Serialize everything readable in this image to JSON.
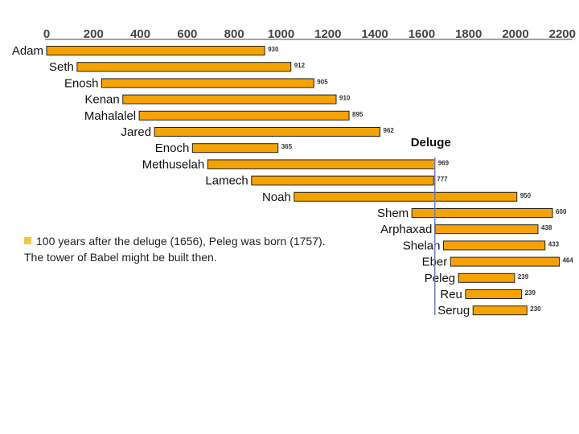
{
  "chart_data": {
    "type": "bar",
    "orientation": "horizontal",
    "subtype": "floating-timeline",
    "x_ticks": [
      "0",
      "200",
      "400",
      "600",
      "800",
      "1000",
      "1200",
      "1400",
      "1600",
      "1800",
      "2000",
      "2200"
    ],
    "xlim": [
      0,
      2250
    ],
    "series": [
      {
        "name": "Adam",
        "start": 0,
        "lifespan": 930,
        "label": "930"
      },
      {
        "name": "Seth",
        "start": 130,
        "lifespan": 912,
        "label": "912"
      },
      {
        "name": "Enosh",
        "start": 235,
        "lifespan": 905,
        "label": "905"
      },
      {
        "name": "Kenan",
        "start": 325,
        "lifespan": 910,
        "label": "910"
      },
      {
        "name": "Mahalalel",
        "start": 395,
        "lifespan": 895,
        "label": "895"
      },
      {
        "name": "Jared",
        "start": 460,
        "lifespan": 962,
        "label": "962"
      },
      {
        "name": "Enoch",
        "start": 622,
        "lifespan": 365,
        "label": "365"
      },
      {
        "name": "Methuselah",
        "start": 687,
        "lifespan": 969,
        "label": "969"
      },
      {
        "name": "Lamech",
        "start": 874,
        "lifespan": 777,
        "label": "777"
      },
      {
        "name": "Noah",
        "start": 1056,
        "lifespan": 950,
        "label": "950"
      },
      {
        "name": "Shem",
        "start": 1558,
        "lifespan": 600,
        "label": "600"
      },
      {
        "name": "Arphaxad",
        "start": 1658,
        "lifespan": 438,
        "label": "438"
      },
      {
        "name": "Shelah",
        "start": 1693,
        "lifespan": 433,
        "label": "433"
      },
      {
        "name": "Eber",
        "start": 1723,
        "lifespan": 464,
        "label": "464"
      },
      {
        "name": "Peleg",
        "start": 1757,
        "lifespan": 239,
        "label": "239"
      },
      {
        "name": "Reu",
        "start": 1787,
        "lifespan": 239,
        "label": "239"
      },
      {
        "name": "Serug",
        "start": 1819,
        "lifespan": 230,
        "label": "230"
      }
    ],
    "annotations": [
      {
        "type": "vertical-line",
        "x": 1656,
        "label": "Deluge"
      }
    ]
  },
  "note": {
    "line1": "100 years after the deluge (1656), Peleg was born (1757).",
    "line2": "The tower of Babel might be built then."
  },
  "colors": {
    "bar": "#f5a300",
    "bullet": "#f2c744",
    "deluge_line": "#6f7fb8",
    "axis": "#444444"
  }
}
